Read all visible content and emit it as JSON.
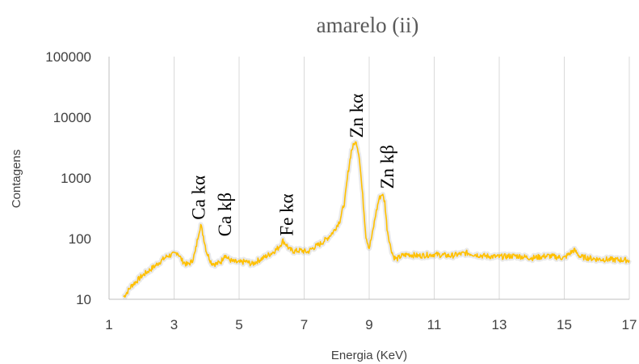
{
  "chart_data": {
    "type": "line",
    "title": "amarelo (ii)",
    "xlabel": "Energia (KeV)",
    "ylabel": "Contagens",
    "xlim": [
      1,
      17
    ],
    "ylim": [
      10,
      100000
    ],
    "yscale": "log",
    "grid": "vertical",
    "legend": "none",
    "x_ticks": [
      "1",
      "3",
      "5",
      "7",
      "9",
      "11",
      "13",
      "15",
      "17"
    ],
    "y_ticks": [
      "10",
      "100",
      "1000",
      "10000",
      "100000"
    ],
    "series": [
      {
        "color": "#FFC000",
        "x": [
          1.45,
          1.55,
          1.7,
          1.85,
          2.0,
          2.2,
          2.4,
          2.6,
          2.8,
          3.0,
          3.1,
          3.25,
          3.4,
          3.55,
          3.65,
          3.75,
          3.82,
          3.9,
          4.0,
          4.15,
          4.3,
          4.45,
          4.55,
          4.65,
          4.8,
          5.0,
          5.2,
          5.4,
          5.6,
          5.8,
          6.0,
          6.2,
          6.35,
          6.45,
          6.55,
          6.7,
          6.9,
          7.1,
          7.3,
          7.5,
          7.7,
          7.9,
          8.1,
          8.25,
          8.35,
          8.45,
          8.55,
          8.62,
          8.7,
          8.8,
          8.9,
          9.0,
          9.1,
          9.2,
          9.3,
          9.4,
          9.48,
          9.55,
          9.65,
          9.75,
          9.85,
          10.0,
          10.2,
          10.5,
          11.0,
          11.5,
          12.0,
          12.5,
          13.0,
          13.5,
          14.0,
          14.5,
          15.0,
          15.3,
          15.5,
          16.0,
          16.5,
          17.0
        ],
        "y": [
          11,
          13,
          17,
          20,
          24,
          29,
          35,
          43,
          52,
          55,
          60,
          43,
          37,
          42,
          60,
          120,
          170,
          110,
          60,
          40,
          38,
          42,
          55,
          47,
          42,
          40,
          42,
          38,
          44,
          50,
          58,
          70,
          92,
          80,
          66,
          62,
          64,
          60,
          72,
          82,
          100,
          130,
          200,
          420,
          1200,
          2800,
          3800,
          3700,
          2200,
          500,
          110,
          70,
          120,
          250,
          450,
          550,
          400,
          150,
          75,
          50,
          46,
          52,
          55,
          52,
          55,
          52,
          58,
          52,
          50,
          52,
          48,
          52,
          48,
          65,
          50,
          46,
          45,
          44
        ]
      }
    ],
    "annotations": [
      {
        "text": "Ca kα",
        "x": 3.75,
        "y": 170
      },
      {
        "text": "Ca kβ",
        "x": 4.55,
        "y": 90
      },
      {
        "text": "Fe kα",
        "x": 6.45,
        "y": 92
      },
      {
        "text": "Zn kα",
        "x": 8.6,
        "y": 3800
      },
      {
        "text": "Zn kβ",
        "x": 9.55,
        "y": 550
      }
    ]
  }
}
